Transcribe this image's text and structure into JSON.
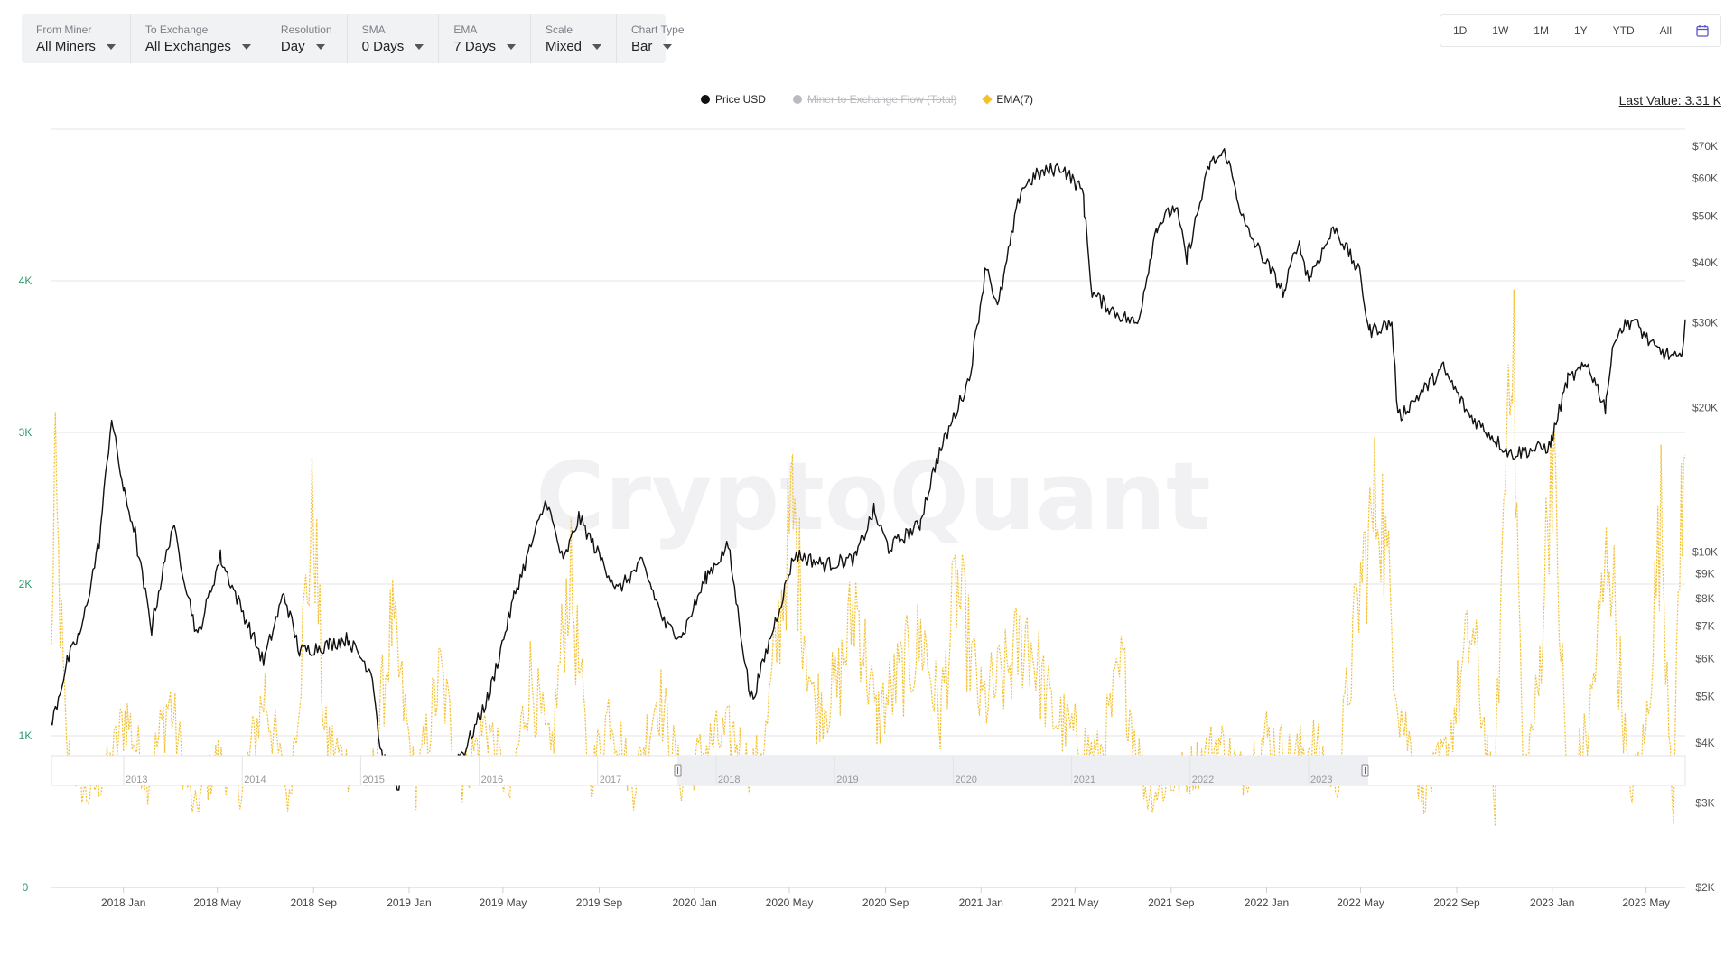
{
  "filters": [
    {
      "label": "From Miner",
      "value": "All Miners"
    },
    {
      "label": "To Exchange",
      "value": "All Exchanges"
    },
    {
      "label": "Resolution",
      "value": "Day"
    },
    {
      "label": "SMA",
      "value": "0 Days"
    },
    {
      "label": "EMA",
      "value": "7 Days"
    },
    {
      "label": "Scale",
      "value": "Mixed"
    },
    {
      "label": "Chart Type",
      "value": "Bar"
    }
  ],
  "ranges": [
    "1D",
    "1W",
    "1M",
    "1Y",
    "YTD",
    "All"
  ],
  "legend": {
    "price": "Price USD",
    "flow": "Miner to Exchange Flow (Total)",
    "ema": "EMA(7)"
  },
  "last_value": "Last Value: 3.31 K",
  "watermark": "CryptoQuant",
  "colors": {
    "price": "#111111",
    "flow": "#b8bbc0",
    "ema": "#f3c030",
    "left_axis": "#2e9b6e",
    "accent": "#5b55c8"
  },
  "chart_data": {
    "type": "line",
    "x_range": [
      "2017-10-01",
      "2023-06-20"
    ],
    "x_ticks": [
      "2018 Jan",
      "2018 May",
      "2018 Sep",
      "2019 Jan",
      "2019 May",
      "2019 Sep",
      "2020 Jan",
      "2020 May",
      "2020 Sep",
      "2021 Jan",
      "2021 May",
      "2021 Sep",
      "2022 Jan",
      "2022 May",
      "2022 Sep",
      "2023 Jan",
      "2023 May"
    ],
    "left_axis": {
      "ticks": [
        "0",
        "1K",
        "2K",
        "3K",
        "4K"
      ],
      "range": [
        0,
        5000
      ]
    },
    "right_axis": {
      "scale": "log",
      "ticks": [
        "$2K",
        "$3K",
        "$4K",
        "$5K",
        "$6K",
        "$7K",
        "$8K",
        "$9K",
        "$10K",
        "$20K",
        "$30K",
        "$40K",
        "$50K",
        "$60K",
        "$70K"
      ],
      "range": [
        2000,
        76000
      ]
    },
    "grid": true,
    "legend_position": "top-center",
    "series": [
      {
        "name": "Price USD",
        "axis": "right",
        "points": [
          [
            "2017-10-01",
            4300
          ],
          [
            "2017-10-20",
            5800
          ],
          [
            "2017-11-10",
            7000
          ],
          [
            "2017-12-01",
            10500
          ],
          [
            "2017-12-17",
            19200
          ],
          [
            "2018-01-01",
            13500
          ],
          [
            "2018-01-16",
            11000
          ],
          [
            "2018-02-06",
            6900
          ],
          [
            "2018-03-05",
            11400
          ],
          [
            "2018-04-06",
            6600
          ],
          [
            "2018-05-05",
            9800
          ],
          [
            "2018-06-29",
            5900
          ],
          [
            "2018-07-25",
            8200
          ],
          [
            "2018-08-14",
            6200
          ],
          [
            "2018-09-20",
            6400
          ],
          [
            "2018-10-15",
            6600
          ],
          [
            "2018-11-15",
            5600
          ],
          [
            "2018-11-25",
            3900
          ],
          [
            "2018-12-15",
            3250
          ],
          [
            "2019-01-10",
            3600
          ],
          [
            "2019-02-07",
            3400
          ],
          [
            "2019-03-15",
            3900
          ],
          [
            "2019-04-15",
            5100
          ],
          [
            "2019-05-14",
            7900
          ],
          [
            "2019-06-26",
            12900
          ],
          [
            "2019-07-17",
            9500
          ],
          [
            "2019-08-06",
            11800
          ],
          [
            "2019-09-25",
            8300
          ],
          [
            "2019-10-26",
            9500
          ],
          [
            "2019-11-25",
            7000
          ],
          [
            "2019-12-17",
            6700
          ],
          [
            "2020-01-15",
            8800
          ],
          [
            "2020-02-13",
            10300
          ],
          [
            "2020-03-12",
            5000
          ],
          [
            "2020-03-16",
            5000
          ],
          [
            "2020-04-29",
            8800
          ],
          [
            "2020-05-08",
            9900
          ],
          [
            "2020-06-15",
            9400
          ],
          [
            "2020-07-25",
            9700
          ],
          [
            "2020-08-17",
            12200
          ],
          [
            "2020-09-05",
            10200
          ],
          [
            "2020-10-15",
            11400
          ],
          [
            "2020-11-05",
            15500
          ],
          [
            "2020-12-17",
            23000
          ],
          [
            "2021-01-08",
            40000
          ],
          [
            "2021-01-22",
            32000
          ],
          [
            "2021-02-21",
            57000
          ],
          [
            "2021-03-13",
            61000
          ],
          [
            "2021-04-14",
            63500
          ],
          [
            "2021-05-12",
            56000
          ],
          [
            "2021-05-23",
            34500
          ],
          [
            "2021-06-22",
            31500
          ],
          [
            "2021-07-20",
            29800
          ],
          [
            "2021-08-13",
            47500
          ],
          [
            "2021-09-07",
            52500
          ],
          [
            "2021-09-21",
            40500
          ],
          [
            "2021-10-20",
            64000
          ],
          [
            "2021-11-10",
            68000
          ],
          [
            "2021-12-04",
            48000
          ],
          [
            "2022-01-24",
            34500
          ],
          [
            "2022-02-10",
            44500
          ],
          [
            "2022-02-24",
            37000
          ],
          [
            "2022-03-29",
            47500
          ],
          [
            "2022-04-30",
            38000
          ],
          [
            "2022-05-12",
            28800
          ],
          [
            "2022-06-10",
            30000
          ],
          [
            "2022-06-18",
            19000
          ],
          [
            "2022-08-15",
            24200
          ],
          [
            "2022-09-15",
            19500
          ],
          [
            "2022-11-09",
            16000
          ],
          [
            "2022-12-30",
            16600
          ],
          [
            "2023-01-20",
            22700
          ],
          [
            "2023-02-16",
            24500
          ],
          [
            "2023-03-10",
            20000
          ],
          [
            "2023-03-23",
            28500
          ],
          [
            "2023-04-14",
            30500
          ],
          [
            "2023-05-12",
            26500
          ],
          [
            "2023-06-15",
            25000
          ],
          [
            "2023-06-20",
            30500
          ]
        ]
      },
      {
        "name": "EMA(7)",
        "axis": "left",
        "points": [
          [
            "2017-10-01",
            1500
          ],
          [
            "2017-10-05",
            2800
          ],
          [
            "2017-10-20",
            900
          ],
          [
            "2017-11-15",
            600
          ],
          [
            "2017-12-15",
            800
          ],
          [
            "2018-01-05",
            1150
          ],
          [
            "2018-02-01",
            700
          ],
          [
            "2018-03-01",
            1250
          ],
          [
            "2018-04-01",
            500
          ],
          [
            "2018-05-01",
            850
          ],
          [
            "2018-06-01",
            650
          ],
          [
            "2018-07-01",
            1300
          ],
          [
            "2018-08-01",
            550
          ],
          [
            "2018-09-01",
            2500
          ],
          [
            "2018-09-15",
            1000
          ],
          [
            "2018-10-15",
            800
          ],
          [
            "2018-11-15",
            700
          ],
          [
            "2018-12-10",
            1750
          ],
          [
            "2019-01-10",
            650
          ],
          [
            "2019-02-10",
            1400
          ],
          [
            "2019-03-10",
            700
          ],
          [
            "2019-04-10",
            1100
          ],
          [
            "2019-05-10",
            600
          ],
          [
            "2019-06-05",
            1400
          ],
          [
            "2019-07-01",
            850
          ],
          [
            "2019-07-25",
            2100
          ],
          [
            "2019-08-20",
            700
          ],
          [
            "2019-09-15",
            1200
          ],
          [
            "2019-10-15",
            650
          ],
          [
            "2019-11-15",
            1300
          ],
          [
            "2019-12-15",
            700
          ],
          [
            "2020-01-20",
            950
          ],
          [
            "2020-02-20",
            1000
          ],
          [
            "2020-03-15",
            750
          ],
          [
            "2020-04-01",
            1000
          ],
          [
            "2020-05-05",
            2500
          ],
          [
            "2020-06-01",
            1200
          ],
          [
            "2020-07-01",
            1300
          ],
          [
            "2020-07-25",
            1900
          ],
          [
            "2020-08-20",
            1100
          ],
          [
            "2020-09-20",
            1400
          ],
          [
            "2020-10-20",
            1650
          ],
          [
            "2020-11-10",
            1100
          ],
          [
            "2020-12-01",
            2000
          ],
          [
            "2021-01-01",
            1200
          ],
          [
            "2021-02-01",
            1400
          ],
          [
            "2021-03-01",
            1700
          ],
          [
            "2021-04-01",
            1150
          ],
          [
            "2021-05-01",
            1000
          ],
          [
            "2021-06-01",
            850
          ],
          [
            "2021-07-01",
            1450
          ],
          [
            "2021-08-01",
            600
          ],
          [
            "2021-09-01",
            700
          ],
          [
            "2021-10-01",
            800
          ],
          [
            "2021-11-01",
            950
          ],
          [
            "2021-12-01",
            750
          ],
          [
            "2022-01-01",
            1000
          ],
          [
            "2022-02-01",
            850
          ],
          [
            "2022-03-01",
            950
          ],
          [
            "2022-04-01",
            700
          ],
          [
            "2022-05-01",
            2000
          ],
          [
            "2022-05-25",
            2650
          ],
          [
            "2022-06-20",
            1200
          ],
          [
            "2022-07-20",
            600
          ],
          [
            "2022-08-20",
            900
          ],
          [
            "2022-09-20",
            1700
          ],
          [
            "2022-10-20",
            500
          ],
          [
            "2022-11-10",
            4100
          ],
          [
            "2022-11-25",
            700
          ],
          [
            "2022-12-15",
            1300
          ],
          [
            "2023-01-01",
            3000
          ],
          [
            "2023-01-20",
            700
          ],
          [
            "2023-02-15",
            1000
          ],
          [
            "2023-03-15",
            2300
          ],
          [
            "2023-04-10",
            600
          ],
          [
            "2023-05-01",
            1000
          ],
          [
            "2023-05-20",
            2450
          ],
          [
            "2023-06-05",
            500
          ],
          [
            "2023-06-15",
            2600
          ],
          [
            "2023-06-20",
            2850
          ]
        ]
      }
    ],
    "navigator": {
      "labels": [
        "2013",
        "2014",
        "2015",
        "2016",
        "2017",
        "2018",
        "2019",
        "2020",
        "2021",
        "2022",
        "2023"
      ],
      "selected_range": [
        "2017-10-01",
        "2023-06-20"
      ]
    }
  }
}
